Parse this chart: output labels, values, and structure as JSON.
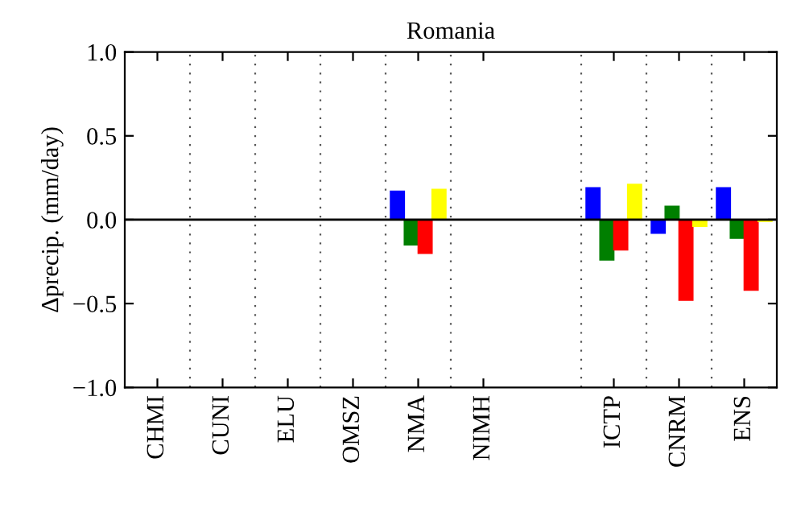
{
  "chart_data": {
    "type": "bar",
    "title": "Romania",
    "ylabel": "Δprecip. (mm/day)",
    "categories": [
      "CHMI",
      "CUNI",
      "ELU",
      "OMSZ",
      "NMA",
      "NIMH",
      null,
      "ICTP",
      "CNRM",
      "ENS"
    ],
    "series": [
      {
        "color": "#0000ff",
        "values": [
          null,
          null,
          null,
          null,
          0.17,
          null,
          null,
          0.19,
          -0.08,
          0.19
        ]
      },
      {
        "color": "#007f00",
        "values": [
          null,
          null,
          null,
          null,
          -0.15,
          null,
          null,
          -0.24,
          0.08,
          -0.11
        ]
      },
      {
        "color": "#ff0000",
        "values": [
          null,
          null,
          null,
          null,
          -0.2,
          null,
          null,
          -0.18,
          -0.48,
          -0.42
        ]
      },
      {
        "color": "#ffff00",
        "values": [
          null,
          null,
          null,
          null,
          0.18,
          null,
          null,
          0.21,
          -0.04,
          -0.01
        ]
      }
    ],
    "ylim": [
      -1.0,
      1.0
    ],
    "yticks": [
      {
        "value": -1.0,
        "label": "−1.0"
      },
      {
        "value": -0.5,
        "label": "−0.5"
      },
      {
        "value": 0.0,
        "label": "0.0"
      },
      {
        "value": 0.5,
        "label": "0.5"
      },
      {
        "value": 1.0,
        "label": "1.0"
      }
    ],
    "ref_lines": [
      {
        "axis": "y",
        "value": 0,
        "color": "#000000",
        "line_style": "solid"
      }
    ],
    "legend": false,
    "grid": false
  }
}
